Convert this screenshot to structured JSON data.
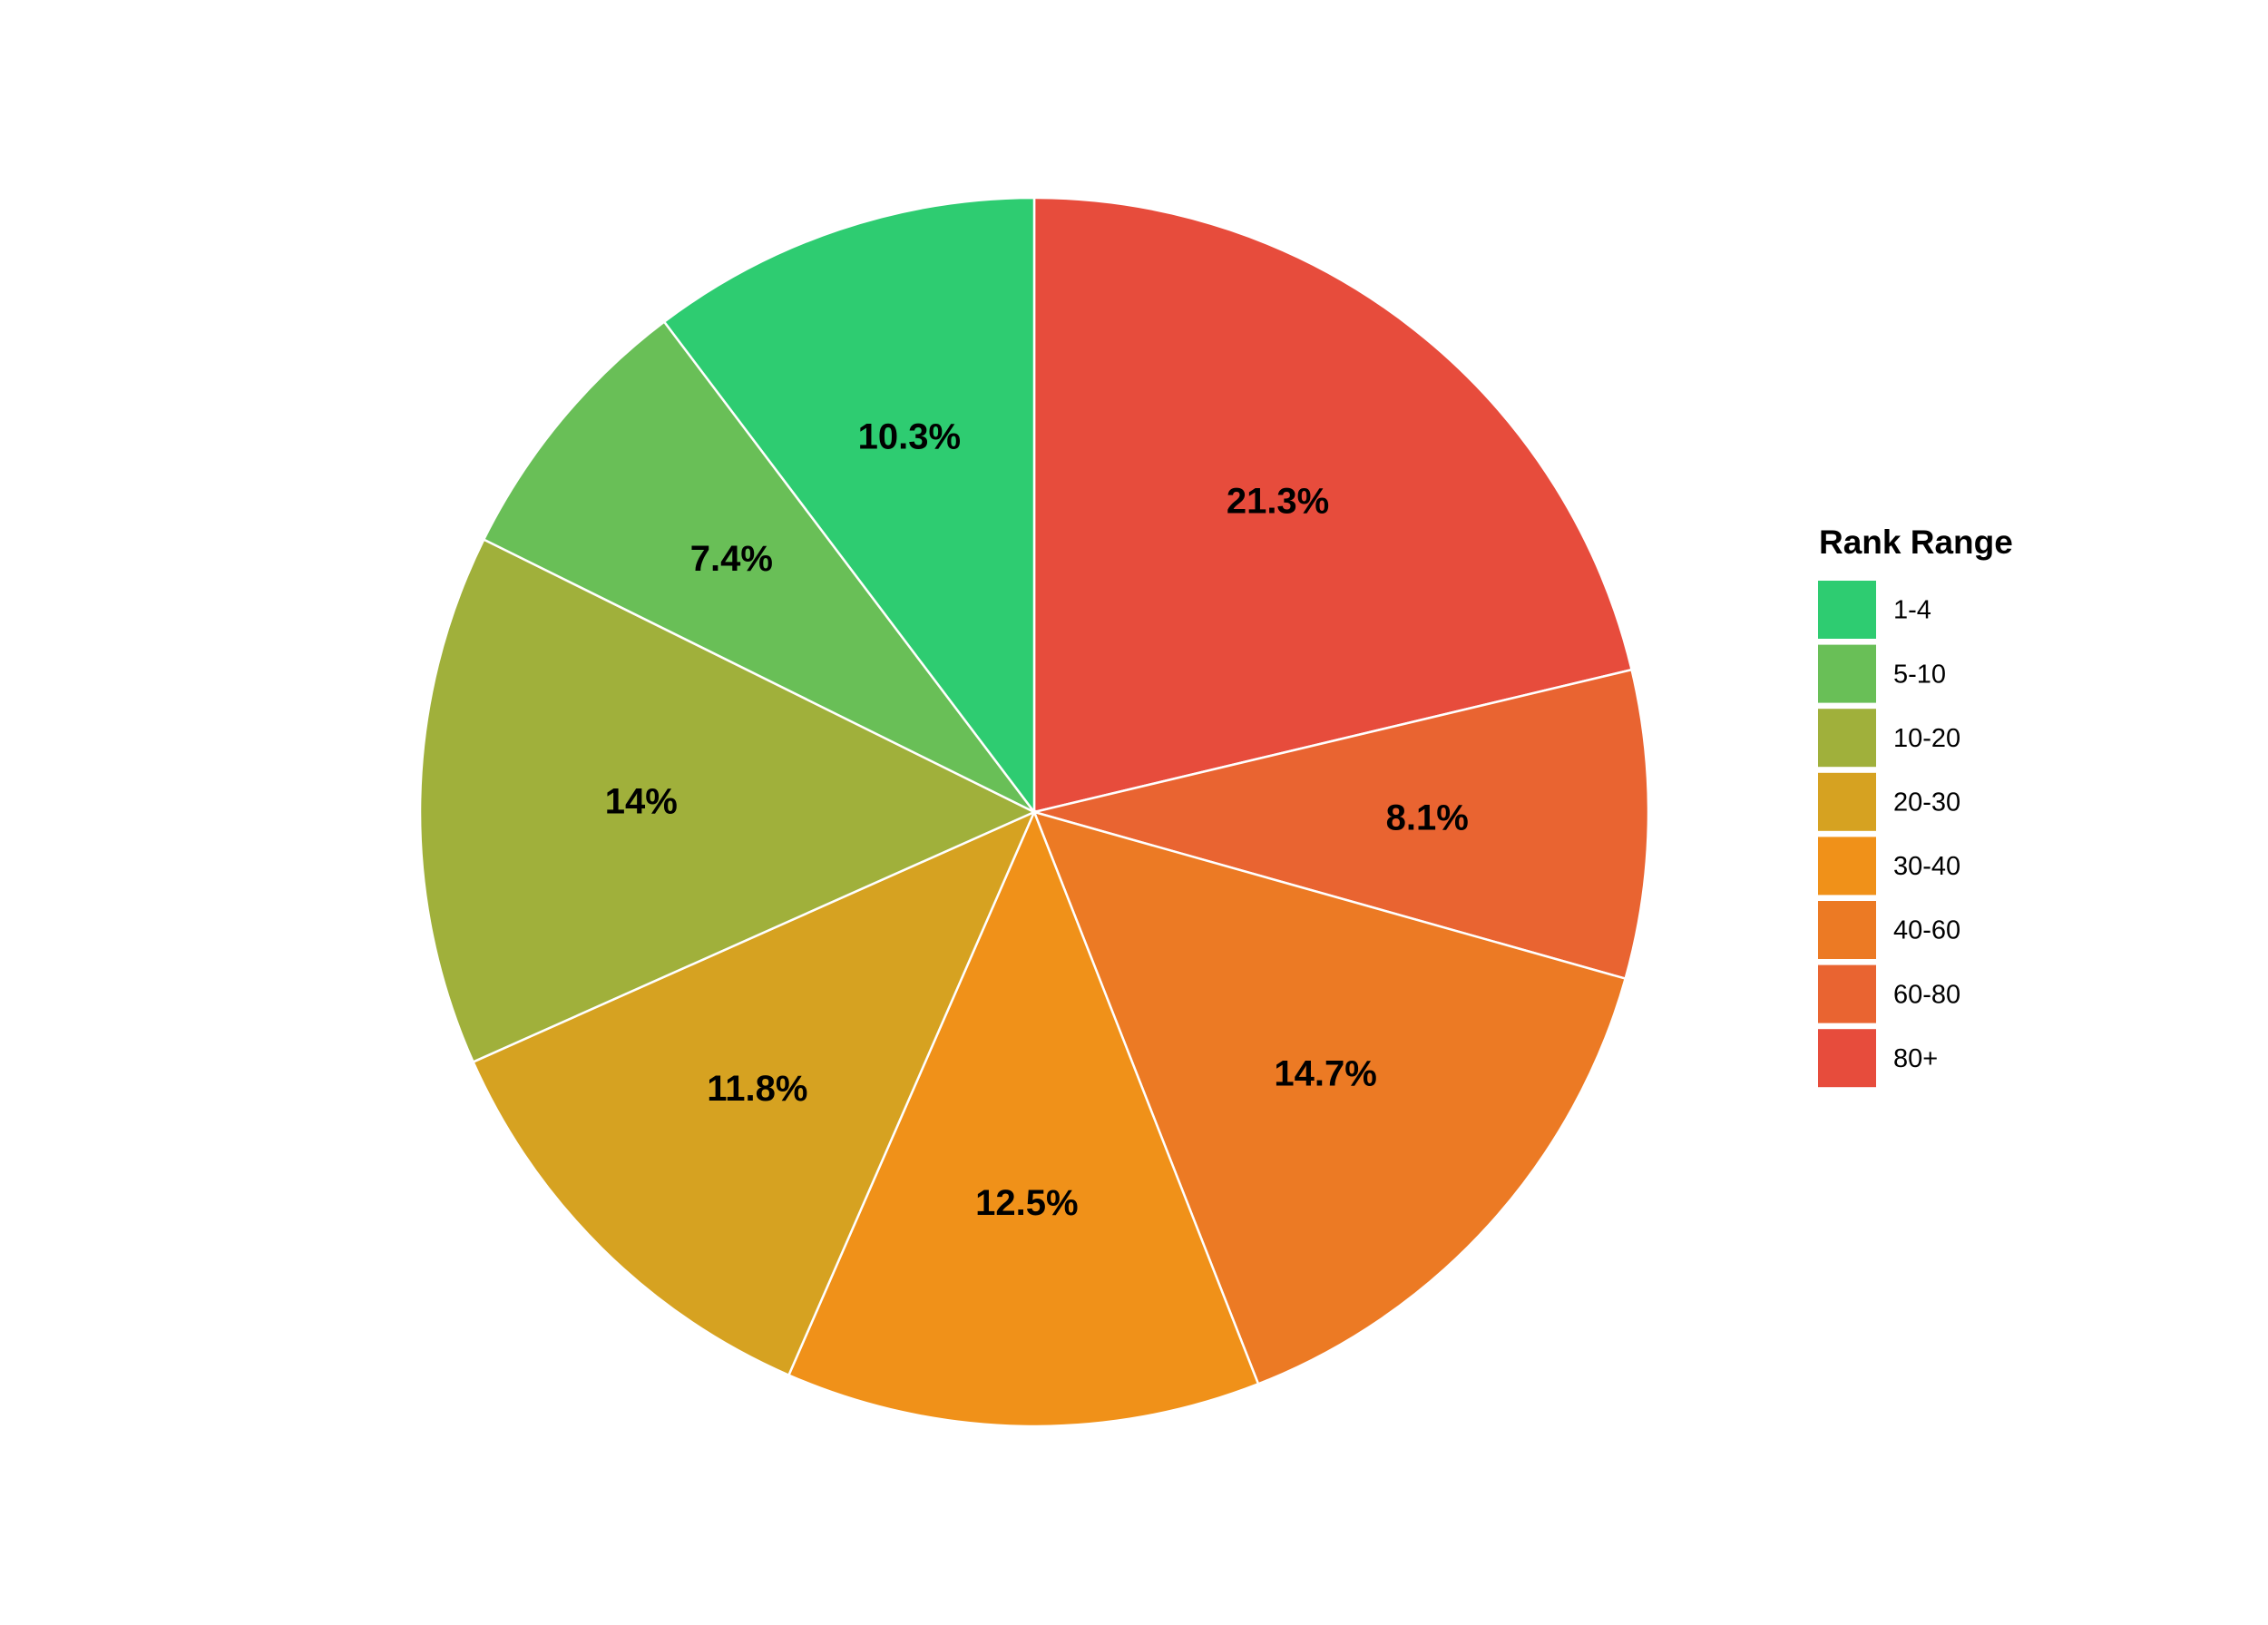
{
  "chart_data": {
    "type": "pie",
    "legend_title": "Rank Range",
    "legend_position": "right",
    "slice_order": "clockwise from 12 o'clock, starting with 80+",
    "categories": [
      "1-4",
      "5-10",
      "10-20",
      "20-30",
      "30-40",
      "40-60",
      "60-80",
      "80+"
    ],
    "values": [
      10.3,
      7.4,
      14,
      11.8,
      12.5,
      14.7,
      8.1,
      21.3
    ],
    "labels": [
      "10.3%",
      "7.4%",
      "14%",
      "11.8%",
      "12.5%",
      "14.7%",
      "8.1%",
      "21.3%"
    ],
    "colors": [
      "#2ecc71",
      "#69bf57",
      "#a0b03b",
      "#d6a221",
      "#f09119",
      "#ec7a24",
      "#e96431",
      "#e74c3c"
    ],
    "slice_border_color": "#ffffff"
  }
}
